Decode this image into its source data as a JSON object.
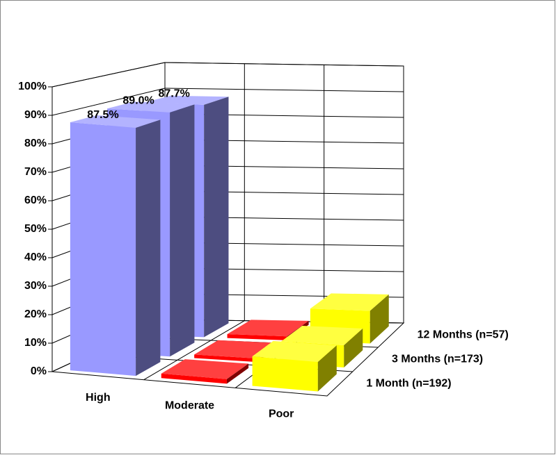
{
  "chart_data": {
    "type": "bar3d",
    "categories": [
      "High",
      "Moderate",
      "Poor"
    ],
    "colors": [
      "#9999ff",
      "#ff0000",
      "#ffff00"
    ],
    "series": [
      {
        "name": "1 Month (n=192)",
        "values": [
          87.5,
          1.6,
          10.4
        ],
        "value_labels": [
          "87.5%",
          null,
          null
        ]
      },
      {
        "name": "3 Months (n=173)",
        "values": [
          89.0,
          1.3,
          8.1
        ],
        "value_labels": [
          "89.0%",
          null,
          null
        ]
      },
      {
        "name": "12 Months (n=57)",
        "values": [
          87.7,
          1.5,
          12.3
        ],
        "value_labels": [
          "87.7%",
          null,
          null
        ]
      }
    ],
    "ylim": [
      0,
      100
    ],
    "yticks": [
      {
        "value": 0,
        "label": "0%"
      },
      {
        "value": 10,
        "label": "10%"
      },
      {
        "value": 20,
        "label": "20%"
      },
      {
        "value": 30,
        "label": "30%"
      },
      {
        "value": 40,
        "label": "40%"
      },
      {
        "value": 50,
        "label": "50%"
      },
      {
        "value": 60,
        "label": "60%"
      },
      {
        "value": 70,
        "label": "70%"
      },
      {
        "value": 80,
        "label": "80%"
      },
      {
        "value": 90,
        "label": "90%"
      },
      {
        "value": 100,
        "label": "100%"
      }
    ],
    "grid": true
  }
}
